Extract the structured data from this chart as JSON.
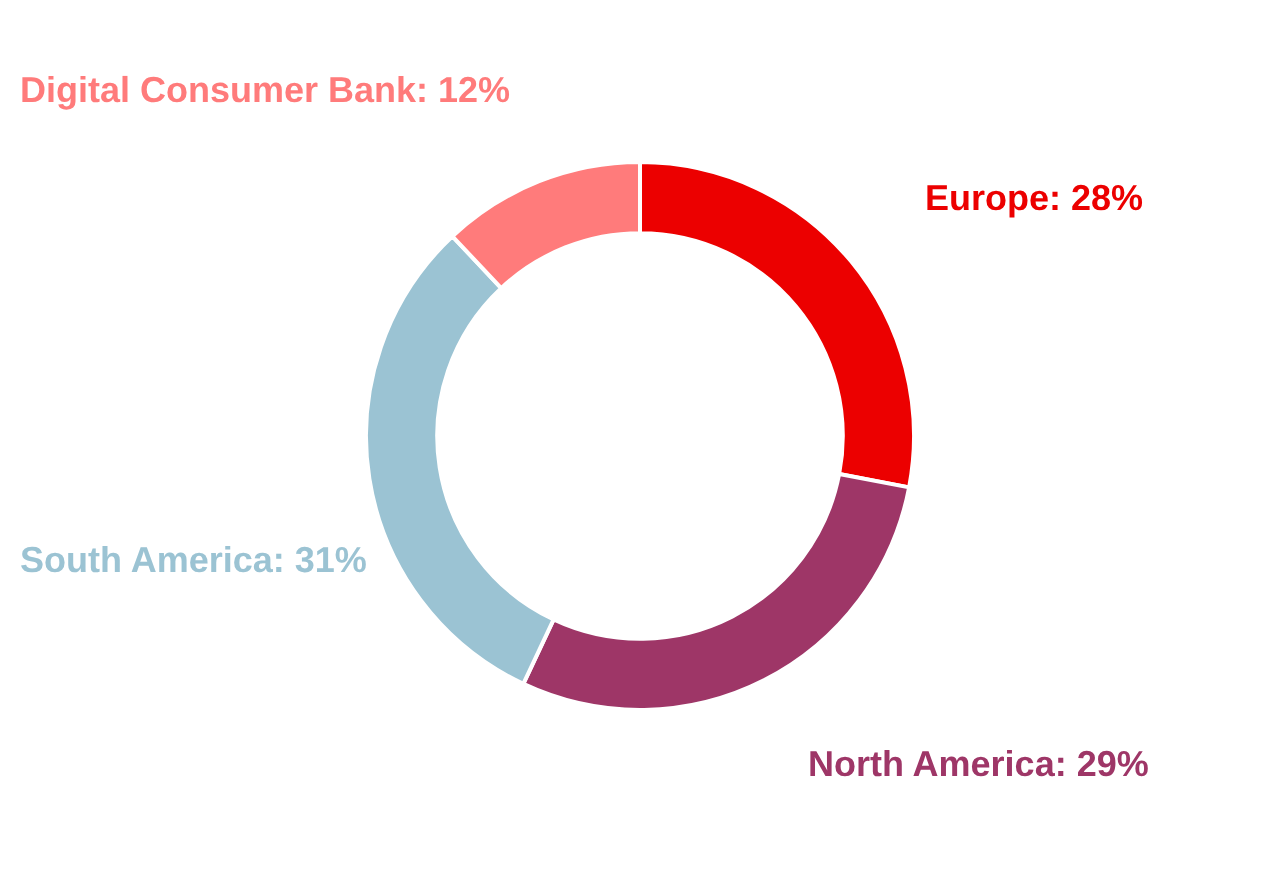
{
  "chart_data": {
    "type": "donut",
    "categories": [
      "Europe",
      "North America",
      "South America",
      "Digital Consumer Bank"
    ],
    "values": [
      28,
      29,
      31,
      12
    ],
    "colors": [
      "#ec0000",
      "#9e3667",
      "#9bc3d3",
      "#ff7b7b"
    ],
    "value_labels": [
      "28%",
      "29%",
      "31%",
      "12%"
    ],
    "legend": false
  }
}
